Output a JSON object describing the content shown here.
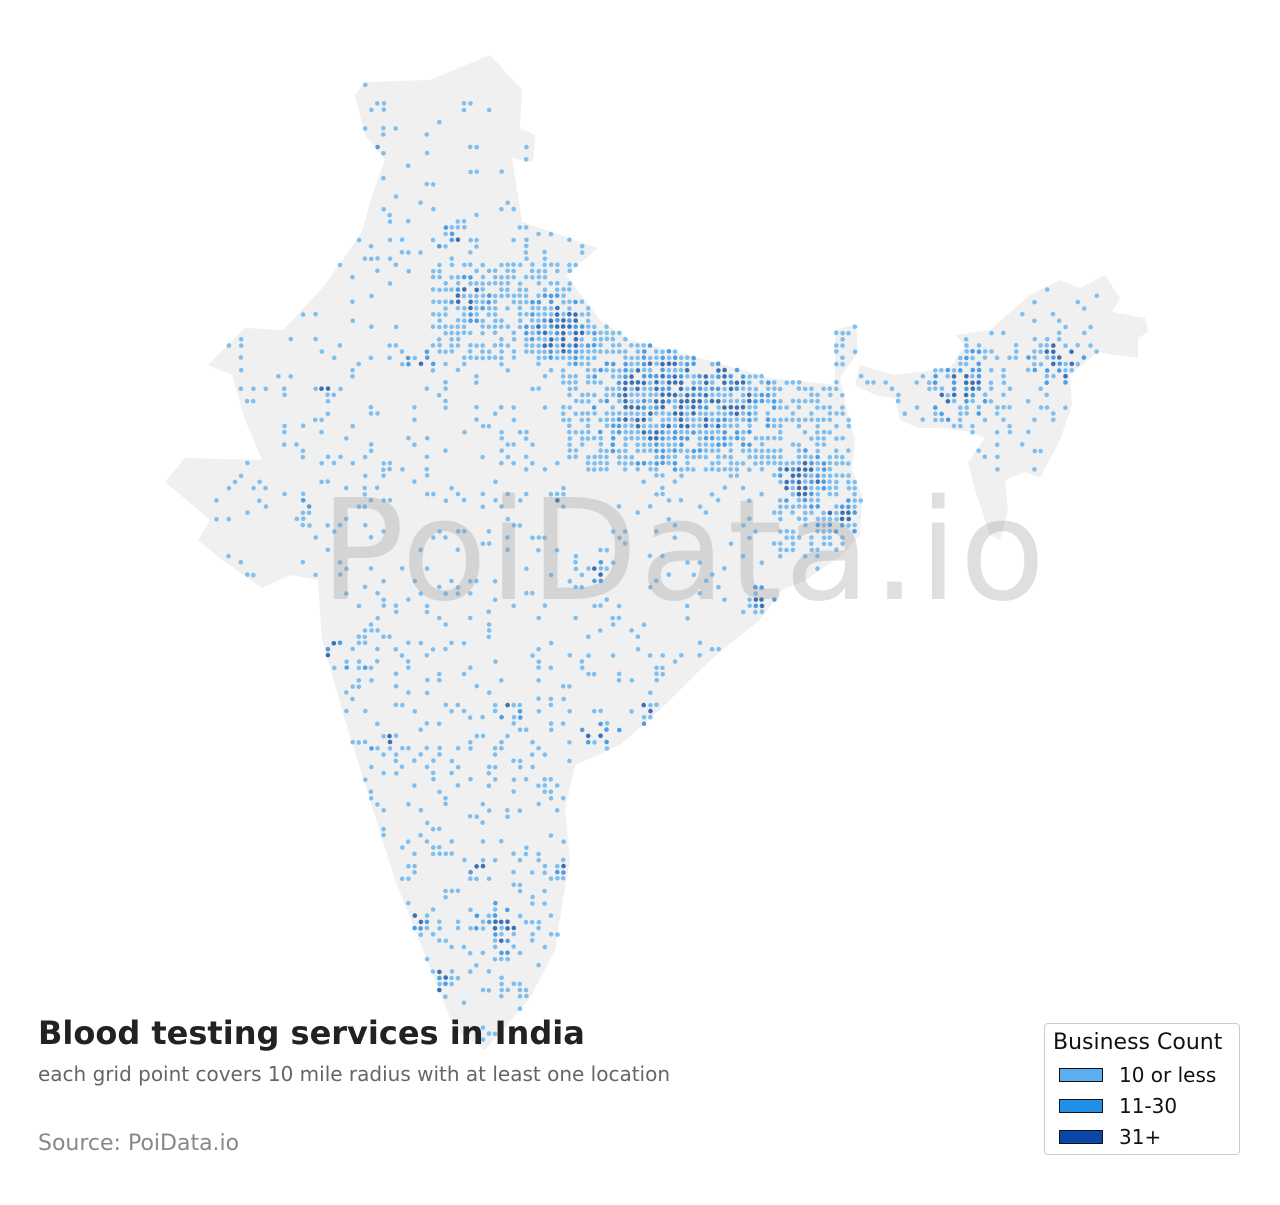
{
  "title": "Blood testing services in India",
  "subtitle": "each grid point covers 10 mile radius with at least one location",
  "source": "Source: PoiData.io",
  "watermark": "PoiData.io",
  "legend": {
    "title": "Business Count",
    "items": [
      {
        "label": "10 or less",
        "color": "#5baef0"
      },
      {
        "label": "11-30",
        "color": "#1f8fe8"
      },
      {
        "label": "31+",
        "color": "#0b47a8"
      }
    ]
  },
  "colors": {
    "land": "#f0f0f0",
    "dot_low": "#7fbff0",
    "dot_mid": "#4c9fe6",
    "dot_high": "#3d6fb3"
  }
}
